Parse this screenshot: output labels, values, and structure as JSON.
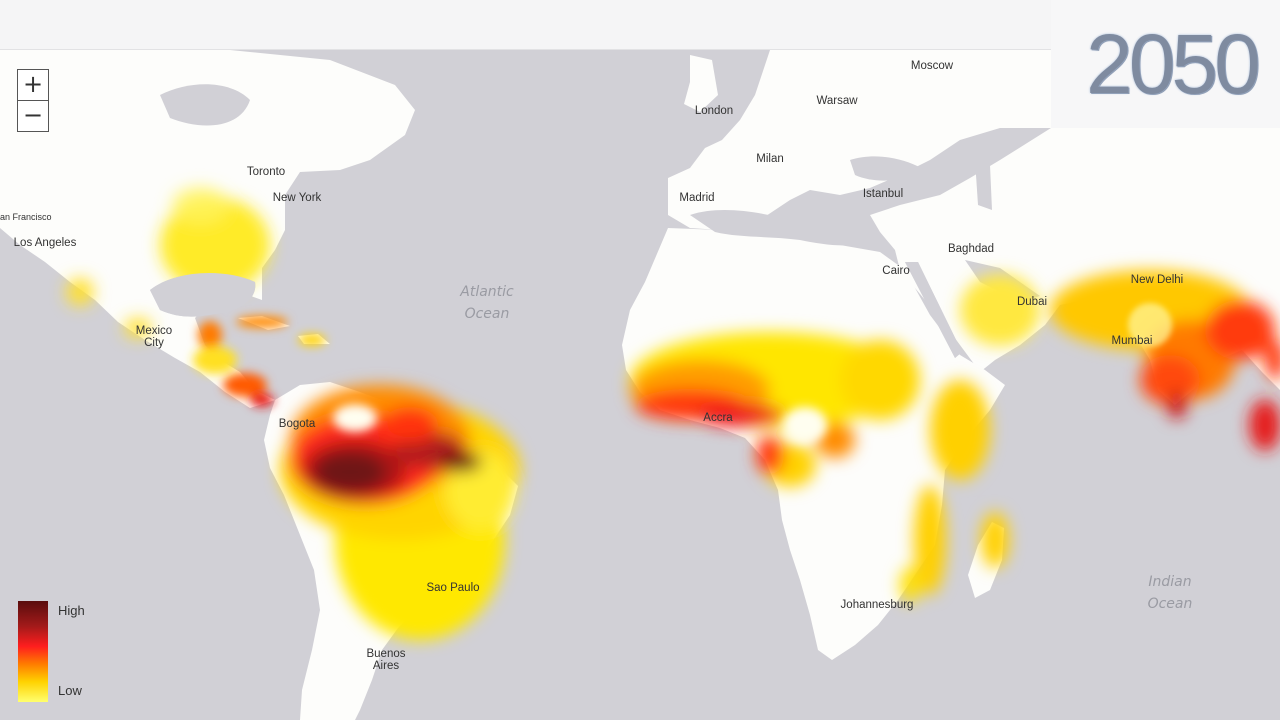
{
  "year": "2050",
  "zoom": {
    "in_label": "+",
    "out_label": "−"
  },
  "legend": {
    "high": "High",
    "low": "Low"
  },
  "cities": {
    "moscow": "Moscow",
    "warsaw": "Warsaw",
    "london": "London",
    "milan": "Milan",
    "madrid": "Madrid",
    "istanbul": "Istanbul",
    "baghdad": "Baghdad",
    "cairo": "Cairo",
    "dubai": "Dubai",
    "new_delhi": "New Delhi",
    "mumbai": "Mumbai",
    "toronto": "Toronto",
    "new_york": "New York",
    "san_francisco": "an Francisco",
    "los_angeles": "Los Angeles",
    "mexico_city": "Mexico City",
    "bogota": "Bogota",
    "accra": "Accra",
    "sao_paulo": "Sao Paulo",
    "buenos_aires": "Buenos Aires",
    "johannesburg": "Johannesburg"
  },
  "oceans": {
    "atlantic": "Atlantic Ocean",
    "indian": "Indian Ocean"
  },
  "colors": {
    "ocean": "#d1d0d6",
    "land": "#fdfdfb",
    "risk_low": "#ffff6e",
    "risk_mid": "#ff7a00",
    "risk_high": "#ff1e1e",
    "risk_max": "#5a0d0d"
  }
}
